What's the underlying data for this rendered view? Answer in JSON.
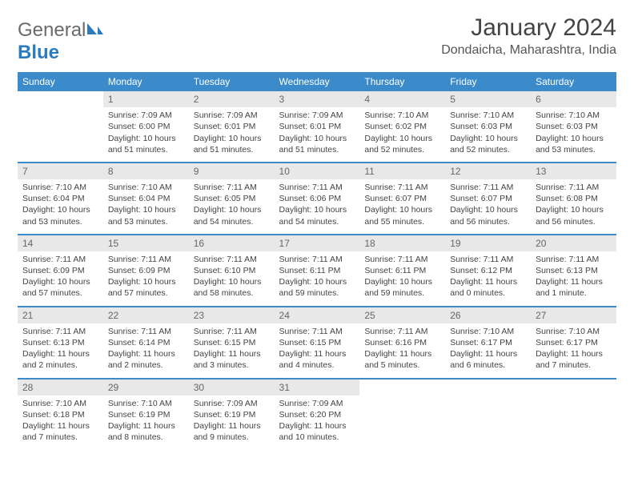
{
  "brand": {
    "name_a": "General",
    "name_b": "Blue"
  },
  "title": "January 2024",
  "location": "Dondaicha, Maharashtra, India",
  "colors": {
    "header_bg": "#3b8bca",
    "header_fg": "#ffffff",
    "daynum_bg": "#e8e8e8",
    "rule": "#3b8bca",
    "text": "#444444"
  },
  "day_headers": [
    "Sunday",
    "Monday",
    "Tuesday",
    "Wednesday",
    "Thursday",
    "Friday",
    "Saturday"
  ],
  "weeks": [
    [
      {
        "n": "",
        "sr": "",
        "ss": "",
        "dl": ""
      },
      {
        "n": "1",
        "sr": "Sunrise: 7:09 AM",
        "ss": "Sunset: 6:00 PM",
        "dl": "Daylight: 10 hours and 51 minutes."
      },
      {
        "n": "2",
        "sr": "Sunrise: 7:09 AM",
        "ss": "Sunset: 6:01 PM",
        "dl": "Daylight: 10 hours and 51 minutes."
      },
      {
        "n": "3",
        "sr": "Sunrise: 7:09 AM",
        "ss": "Sunset: 6:01 PM",
        "dl": "Daylight: 10 hours and 51 minutes."
      },
      {
        "n": "4",
        "sr": "Sunrise: 7:10 AM",
        "ss": "Sunset: 6:02 PM",
        "dl": "Daylight: 10 hours and 52 minutes."
      },
      {
        "n": "5",
        "sr": "Sunrise: 7:10 AM",
        "ss": "Sunset: 6:03 PM",
        "dl": "Daylight: 10 hours and 52 minutes."
      },
      {
        "n": "6",
        "sr": "Sunrise: 7:10 AM",
        "ss": "Sunset: 6:03 PM",
        "dl": "Daylight: 10 hours and 53 minutes."
      }
    ],
    [
      {
        "n": "7",
        "sr": "Sunrise: 7:10 AM",
        "ss": "Sunset: 6:04 PM",
        "dl": "Daylight: 10 hours and 53 minutes."
      },
      {
        "n": "8",
        "sr": "Sunrise: 7:10 AM",
        "ss": "Sunset: 6:04 PM",
        "dl": "Daylight: 10 hours and 53 minutes."
      },
      {
        "n": "9",
        "sr": "Sunrise: 7:11 AM",
        "ss": "Sunset: 6:05 PM",
        "dl": "Daylight: 10 hours and 54 minutes."
      },
      {
        "n": "10",
        "sr": "Sunrise: 7:11 AM",
        "ss": "Sunset: 6:06 PM",
        "dl": "Daylight: 10 hours and 54 minutes."
      },
      {
        "n": "11",
        "sr": "Sunrise: 7:11 AM",
        "ss": "Sunset: 6:07 PM",
        "dl": "Daylight: 10 hours and 55 minutes."
      },
      {
        "n": "12",
        "sr": "Sunrise: 7:11 AM",
        "ss": "Sunset: 6:07 PM",
        "dl": "Daylight: 10 hours and 56 minutes."
      },
      {
        "n": "13",
        "sr": "Sunrise: 7:11 AM",
        "ss": "Sunset: 6:08 PM",
        "dl": "Daylight: 10 hours and 56 minutes."
      }
    ],
    [
      {
        "n": "14",
        "sr": "Sunrise: 7:11 AM",
        "ss": "Sunset: 6:09 PM",
        "dl": "Daylight: 10 hours and 57 minutes."
      },
      {
        "n": "15",
        "sr": "Sunrise: 7:11 AM",
        "ss": "Sunset: 6:09 PM",
        "dl": "Daylight: 10 hours and 57 minutes."
      },
      {
        "n": "16",
        "sr": "Sunrise: 7:11 AM",
        "ss": "Sunset: 6:10 PM",
        "dl": "Daylight: 10 hours and 58 minutes."
      },
      {
        "n": "17",
        "sr": "Sunrise: 7:11 AM",
        "ss": "Sunset: 6:11 PM",
        "dl": "Daylight: 10 hours and 59 minutes."
      },
      {
        "n": "18",
        "sr": "Sunrise: 7:11 AM",
        "ss": "Sunset: 6:11 PM",
        "dl": "Daylight: 10 hours and 59 minutes."
      },
      {
        "n": "19",
        "sr": "Sunrise: 7:11 AM",
        "ss": "Sunset: 6:12 PM",
        "dl": "Daylight: 11 hours and 0 minutes."
      },
      {
        "n": "20",
        "sr": "Sunrise: 7:11 AM",
        "ss": "Sunset: 6:13 PM",
        "dl": "Daylight: 11 hours and 1 minute."
      }
    ],
    [
      {
        "n": "21",
        "sr": "Sunrise: 7:11 AM",
        "ss": "Sunset: 6:13 PM",
        "dl": "Daylight: 11 hours and 2 minutes."
      },
      {
        "n": "22",
        "sr": "Sunrise: 7:11 AM",
        "ss": "Sunset: 6:14 PM",
        "dl": "Daylight: 11 hours and 2 minutes."
      },
      {
        "n": "23",
        "sr": "Sunrise: 7:11 AM",
        "ss": "Sunset: 6:15 PM",
        "dl": "Daylight: 11 hours and 3 minutes."
      },
      {
        "n": "24",
        "sr": "Sunrise: 7:11 AM",
        "ss": "Sunset: 6:15 PM",
        "dl": "Daylight: 11 hours and 4 minutes."
      },
      {
        "n": "25",
        "sr": "Sunrise: 7:11 AM",
        "ss": "Sunset: 6:16 PM",
        "dl": "Daylight: 11 hours and 5 minutes."
      },
      {
        "n": "26",
        "sr": "Sunrise: 7:10 AM",
        "ss": "Sunset: 6:17 PM",
        "dl": "Daylight: 11 hours and 6 minutes."
      },
      {
        "n": "27",
        "sr": "Sunrise: 7:10 AM",
        "ss": "Sunset: 6:17 PM",
        "dl": "Daylight: 11 hours and 7 minutes."
      }
    ],
    [
      {
        "n": "28",
        "sr": "Sunrise: 7:10 AM",
        "ss": "Sunset: 6:18 PM",
        "dl": "Daylight: 11 hours and 7 minutes."
      },
      {
        "n": "29",
        "sr": "Sunrise: 7:10 AM",
        "ss": "Sunset: 6:19 PM",
        "dl": "Daylight: 11 hours and 8 minutes."
      },
      {
        "n": "30",
        "sr": "Sunrise: 7:09 AM",
        "ss": "Sunset: 6:19 PM",
        "dl": "Daylight: 11 hours and 9 minutes."
      },
      {
        "n": "31",
        "sr": "Sunrise: 7:09 AM",
        "ss": "Sunset: 6:20 PM",
        "dl": "Daylight: 11 hours and 10 minutes."
      },
      {
        "n": "",
        "sr": "",
        "ss": "",
        "dl": ""
      },
      {
        "n": "",
        "sr": "",
        "ss": "",
        "dl": ""
      },
      {
        "n": "",
        "sr": "",
        "ss": "",
        "dl": ""
      }
    ]
  ]
}
